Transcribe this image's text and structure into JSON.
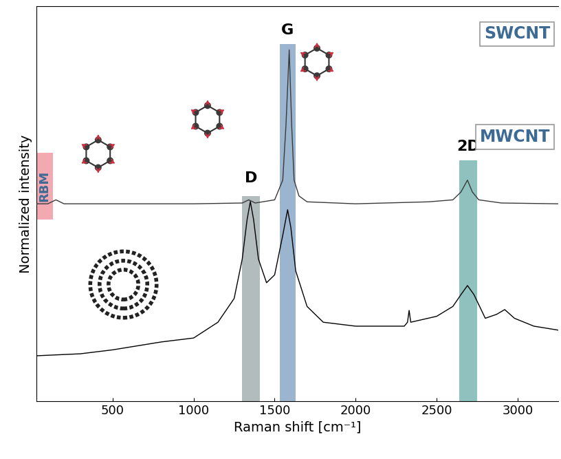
{
  "chart_data": {
    "type": "line",
    "x_label": "Raman shift [cm⁻¹]",
    "y_label": "Normalized intensity",
    "xlim": [
      30,
      3250
    ],
    "xticks": [
      500,
      1000,
      1500,
      2000,
      2500,
      3000
    ],
    "ylim": [
      0,
      1
    ],
    "tick_labels": "x",
    "grid": false,
    "series": [
      {
        "name": "SWCNT",
        "color": "#3a3a3a",
        "x": [
          30,
          100,
          150,
          200,
          500,
          1000,
          1300,
          1340,
          1380,
          1500,
          1550,
          1570,
          1590,
          1605,
          1620,
          1650,
          1700,
          2000,
          2450,
          2600,
          2650,
          2690,
          2720,
          2760,
          2900,
          3250
        ],
        "values": [
          0.5,
          0.5,
          0.51,
          0.5,
          0.5,
          0.5,
          0.502,
          0.51,
          0.502,
          0.51,
          0.56,
          0.7,
          0.89,
          0.7,
          0.56,
          0.52,
          0.505,
          0.5,
          0.505,
          0.51,
          0.53,
          0.56,
          0.53,
          0.51,
          0.502,
          0.5
        ]
      },
      {
        "name": "MWCNT",
        "color": "#000000",
        "x": [
          30,
          300,
          500,
          800,
          1000,
          1150,
          1250,
          1300,
          1330,
          1350,
          1370,
          1400,
          1450,
          1500,
          1550,
          1580,
          1600,
          1630,
          1700,
          1800,
          2000,
          2300,
          2320,
          2330,
          2340,
          2500,
          2600,
          2650,
          2690,
          2730,
          2800,
          2870,
          2920,
          2980,
          3100,
          3250
        ],
        "values": [
          0.115,
          0.12,
          0.13,
          0.15,
          0.16,
          0.2,
          0.26,
          0.36,
          0.46,
          0.506,
          0.46,
          0.36,
          0.3,
          0.32,
          0.42,
          0.485,
          0.44,
          0.33,
          0.24,
          0.2,
          0.19,
          0.19,
          0.2,
          0.23,
          0.2,
          0.215,
          0.24,
          0.27,
          0.293,
          0.27,
          0.21,
          0.22,
          0.232,
          0.21,
          0.19,
          0.18
        ]
      }
    ],
    "bands": [
      {
        "label": "RBM",
        "range": [
          30,
          130
        ],
        "color": "#f08c98"
      },
      {
        "label": "D",
        "range": [
          1300,
          1410
        ],
        "color": "#9aa6a6"
      },
      {
        "label": "G",
        "range": [
          1530,
          1630
        ],
        "color": "#7b9cc0"
      },
      {
        "label": "2D",
        "range": [
          2640,
          2750
        ],
        "color": "#6aaea8"
      }
    ]
  }
}
